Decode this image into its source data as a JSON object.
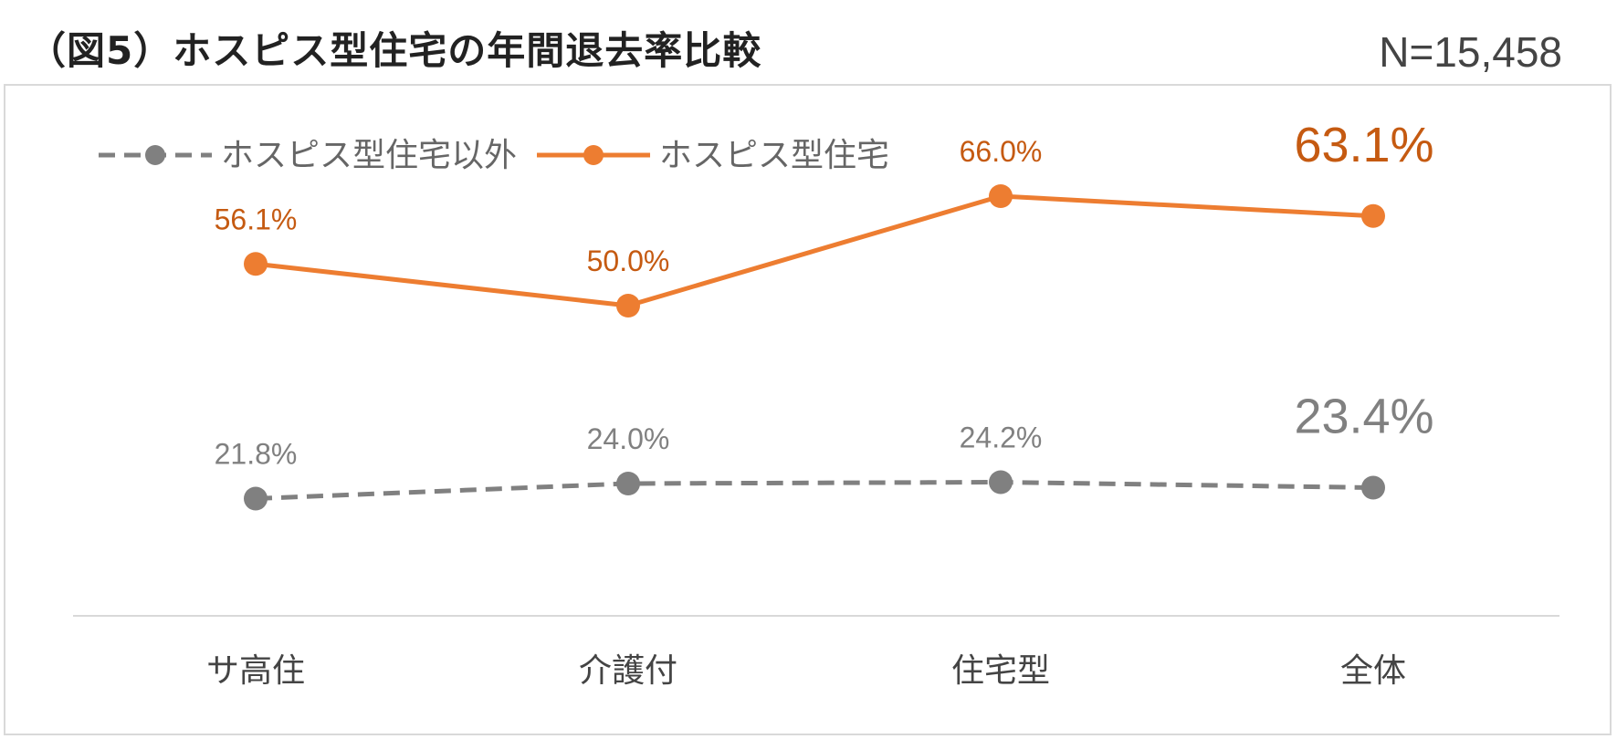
{
  "title": "（図5）ホスピス型住宅の年間退去率比較",
  "sample_size": "N=15,458",
  "chart_data": {
    "type": "line",
    "title": "（図5）ホスピス型住宅の年間退去率比較",
    "categories": [
      "サ高住",
      "介護付",
      "住宅型",
      "全体"
    ],
    "series": [
      {
        "name": "ホスピス型住宅以外",
        "values": [
          21.8,
          24.0,
          24.2,
          23.4
        ],
        "labels": [
          "21.8%",
          "24.0%",
          "24.2%",
          "23.4%"
        ],
        "color": "#808080",
        "line_style": "dashed"
      },
      {
        "name": "ホスピス型住宅",
        "values": [
          56.1,
          50.0,
          66.0,
          63.1
        ],
        "labels": [
          "56.1%",
          "50.0%",
          "66.0%",
          "63.1%"
        ],
        "color": "#ED7D31",
        "label_color": "#C55A11",
        "line_style": "solid"
      }
    ],
    "ylim": [
      0,
      80
    ],
    "grid": false,
    "legend": "top-left",
    "highlight_last_category": true
  }
}
